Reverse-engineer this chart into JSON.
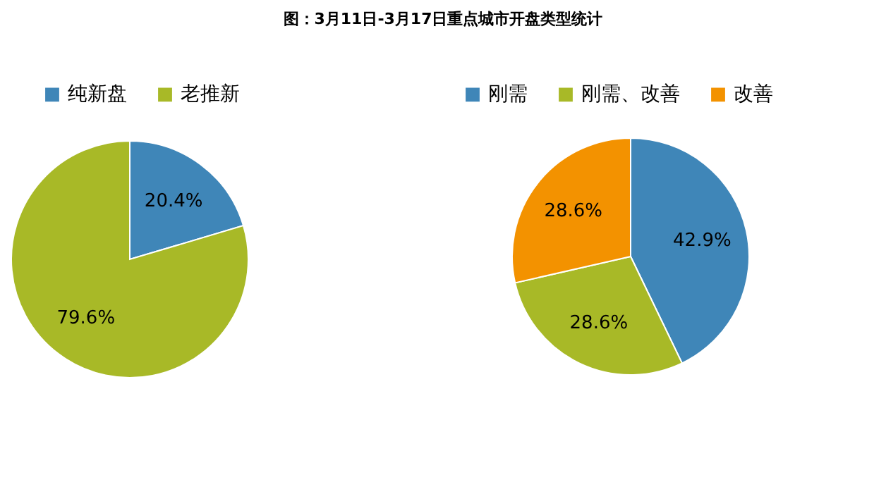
{
  "chart_data": [
    {
      "type": "pie",
      "title": "图：3月11日-3月17日重点城市开盘类型统计",
      "categories": [
        "纯新盘",
        "老推新"
      ],
      "values": [
        20.4,
        79.6
      ],
      "colors": [
        "#3f86b8",
        "#a8b927"
      ],
      "value_labels": [
        "20.4%",
        "79.6%"
      ],
      "legend": "top"
    },
    {
      "type": "pie",
      "categories": [
        "刚需",
        "刚需、改善",
        "改善"
      ],
      "values": [
        42.9,
        28.6,
        28.6
      ],
      "colors": [
        "#3f86b8",
        "#a8b927",
        "#f39200"
      ],
      "value_labels": [
        "42.9%",
        "28.6%",
        "28.6%"
      ],
      "legend": "top"
    }
  ]
}
